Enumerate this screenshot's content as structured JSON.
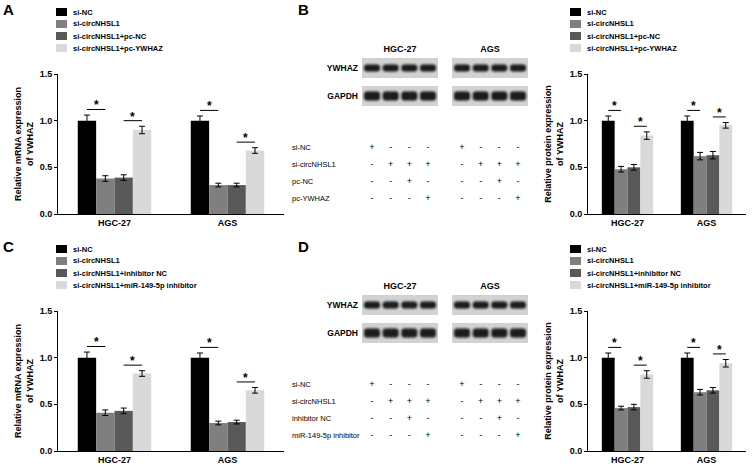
{
  "chart_data": [
    {
      "panel": "A",
      "type": "bar",
      "y_label": [
        "Relative mRNA expression",
        "of YWHAZ"
      ],
      "categories": [
        "HGC-27",
        "AGS"
      ],
      "series": [
        {
          "name": "si-NC",
          "color": "#000000",
          "values": [
            1.0,
            1.0
          ],
          "errors": [
            0.06,
            0.05
          ]
        },
        {
          "name": "si-circNHSL1",
          "color": "#7f7f7f",
          "values": [
            0.38,
            0.31
          ],
          "errors": [
            0.03,
            0.02
          ]
        },
        {
          "name": "si-circNHSL1+pc-NC",
          "color": "#595959",
          "values": [
            0.39,
            0.31
          ],
          "errors": [
            0.03,
            0.02
          ]
        },
        {
          "name": "si-circNHSL1+pc-YWHAZ",
          "color": "#d9d9d9",
          "values": [
            0.9,
            0.68
          ],
          "errors": [
            0.04,
            0.03
          ]
        }
      ],
      "ylim": [
        0,
        1.5
      ],
      "yticks": [
        {
          "value": 0,
          "label": "0.0"
        },
        0.5,
        {
          "value": 1,
          "label": "1.0"
        },
        1.5
      ],
      "grid": false,
      "legend": "top-left",
      "significance": [
        {
          "series": [
            0,
            1
          ],
          "label": "*"
        },
        {
          "series": [
            2,
            3
          ],
          "label": "*"
        }
      ]
    },
    {
      "panel": "B",
      "type": "bar",
      "y_label": [
        "Relative protein expression",
        "of YWHAZ"
      ],
      "categories": [
        "HGC-27",
        "AGS"
      ],
      "series": [
        {
          "name": "si-NC",
          "color": "#000000",
          "values": [
            1.0,
            1.0
          ],
          "errors": [
            0.05,
            0.05
          ]
        },
        {
          "name": "si-circNHSL1",
          "color": "#7f7f7f",
          "values": [
            0.48,
            0.62
          ],
          "errors": [
            0.03,
            0.04
          ]
        },
        {
          "name": "si-circNHSL1+pc-NC",
          "color": "#595959",
          "values": [
            0.5,
            0.63
          ],
          "errors": [
            0.03,
            0.04
          ]
        },
        {
          "name": "si-circNHSL1+pc-YWHAZ",
          "color": "#d9d9d9",
          "values": [
            0.84,
            0.95
          ],
          "errors": [
            0.04,
            0.03
          ]
        }
      ],
      "ylim": [
        0,
        1.5
      ],
      "yticks": [
        {
          "value": 0,
          "label": "0.0"
        },
        0.5,
        {
          "value": 1,
          "label": "1.0"
        },
        1.5
      ],
      "grid": false,
      "legend": "top-right",
      "significance": [
        {
          "series": [
            0,
            1
          ],
          "label": "*"
        },
        {
          "series": [
            2,
            3
          ],
          "label": "*"
        }
      ]
    },
    {
      "panel": "C",
      "type": "bar",
      "y_label": [
        "Relative mRNA expression",
        "of YWHAZ"
      ],
      "categories": [
        "HGC-27",
        "AGS"
      ],
      "series": [
        {
          "name": "si-NC",
          "color": "#000000",
          "values": [
            1.0,
            1.0
          ],
          "errors": [
            0.06,
            0.05
          ]
        },
        {
          "name": "si-circNHSL1",
          "color": "#7f7f7f",
          "values": [
            0.41,
            0.3
          ],
          "errors": [
            0.03,
            0.02
          ]
        },
        {
          "name": "si-circNHSL1+inhibitor NC",
          "color": "#595959",
          "values": [
            0.43,
            0.31
          ],
          "errors": [
            0.03,
            0.02
          ]
        },
        {
          "name": "si-circNHSL1+miR-149-5p inhibitor",
          "color": "#d9d9d9",
          "values": [
            0.83,
            0.65
          ],
          "errors": [
            0.03,
            0.03
          ]
        }
      ],
      "ylim": [
        0,
        1.5
      ],
      "yticks": [
        {
          "value": 0,
          "label": "0.0"
        },
        0.5,
        {
          "value": 1,
          "label": "1.0"
        },
        1.5
      ],
      "grid": false,
      "legend": "top-left",
      "significance": [
        {
          "series": [
            0,
            1
          ],
          "label": "*"
        },
        {
          "series": [
            2,
            3
          ],
          "label": "*"
        }
      ]
    },
    {
      "panel": "D",
      "type": "bar",
      "y_label": [
        "Relative protein expression",
        "of YWHAZ"
      ],
      "categories": [
        "HGC-27",
        "AGS"
      ],
      "series": [
        {
          "name": "si-NC",
          "color": "#000000",
          "values": [
            1.0,
            1.0
          ],
          "errors": [
            0.05,
            0.05
          ]
        },
        {
          "name": "si-circNHSL1",
          "color": "#7f7f7f",
          "values": [
            0.46,
            0.63
          ],
          "errors": [
            0.02,
            0.03
          ]
        },
        {
          "name": "si-circNHSL1+inhibitor NC",
          "color": "#595959",
          "values": [
            0.47,
            0.65
          ],
          "errors": [
            0.03,
            0.03
          ]
        },
        {
          "name": "si-circNHSL1+miR-149-5p inhibitor",
          "color": "#d9d9d9",
          "values": [
            0.82,
            0.94
          ],
          "errors": [
            0.04,
            0.04
          ]
        }
      ],
      "ylim": [
        0,
        1.5
      ],
      "yticks": [
        {
          "value": 0,
          "label": "0.0"
        },
        0.5,
        {
          "value": 1,
          "label": "1.0"
        },
        1.5
      ],
      "grid": false,
      "legend": "top-right",
      "significance": [
        {
          "series": [
            0,
            1
          ],
          "label": "*"
        },
        {
          "series": [
            2,
            3
          ],
          "label": "*"
        }
      ]
    }
  ],
  "blots": [
    {
      "panel": "B",
      "cell_lines": [
        "HGC-27",
        "AGS"
      ],
      "bands": [
        "YWHAZ",
        "GAPDH"
      ],
      "conditions": [
        {
          "label": "si-NC",
          "marks": [
            "+",
            "-",
            "-",
            "-",
            "+",
            "-",
            "-",
            "-"
          ]
        },
        {
          "label": "si-circNHSL1",
          "marks": [
            "-",
            "+",
            "+",
            "+",
            "-",
            "+",
            "+",
            "+"
          ]
        },
        {
          "label": "pc-NC",
          "marks": [
            "-",
            "-",
            "+",
            "-",
            "-",
            "-",
            "+",
            "-"
          ]
        },
        {
          "label": "pc-YWHAZ",
          "marks": [
            "-",
            "-",
            "-",
            "+",
            "-",
            "-",
            "-",
            "+"
          ]
        }
      ]
    },
    {
      "panel": "D",
      "cell_lines": [
        "HGC-27",
        "AGS"
      ],
      "bands": [
        "YWHAZ",
        "GAPDH"
      ],
      "conditions": [
        {
          "label": "si-NC",
          "marks": [
            "+",
            "-",
            "-",
            "-",
            "+",
            "-",
            "-",
            "-"
          ]
        },
        {
          "label": "si-circNHSL1",
          "marks": [
            "-",
            "+",
            "+",
            "+",
            "-",
            "+",
            "+",
            "+"
          ]
        },
        {
          "label": "inhibitor NC",
          "marks": [
            "-",
            "-",
            "+",
            "-",
            "-",
            "-",
            "+",
            "-"
          ]
        },
        {
          "label": "miR-149-5p inhibitor",
          "marks": [
            "-",
            "-",
            "-",
            "+",
            "-",
            "-",
            "-",
            "+"
          ]
        }
      ]
    }
  ]
}
